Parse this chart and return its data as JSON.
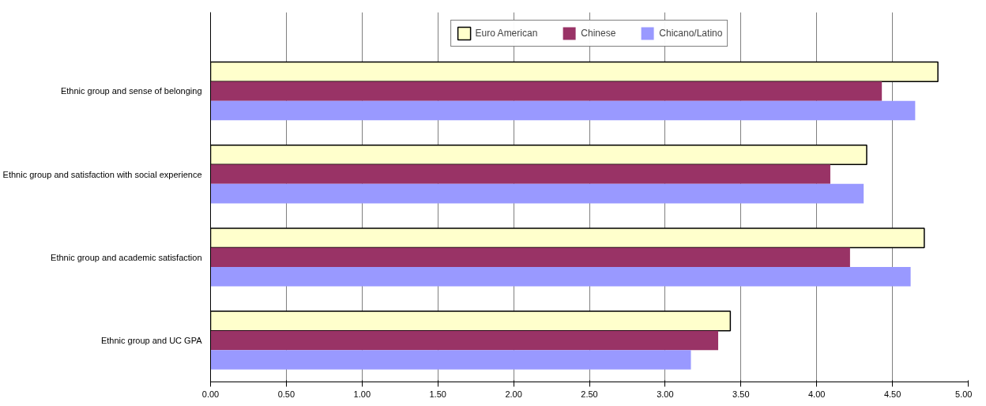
{
  "chart_data": {
    "type": "bar",
    "orientation": "horizontal",
    "categories": [
      "Ethnic group and sense of belonging",
      "Ethnic group and satisfaction with social experience",
      "Ethnic group and academic satisfaction",
      "Ethnic group and UC GPA"
    ],
    "series": [
      {
        "name": "Euro American",
        "color": "#ffffcc",
        "values": [
          4.8,
          4.33,
          4.71,
          3.43
        ]
      },
      {
        "name": "Chinese",
        "color": "#993366",
        "values": [
          4.43,
          4.09,
          4.22,
          3.35
        ]
      },
      {
        "name": "Chicano/Latino",
        "color": "#9999ff",
        "values": [
          4.65,
          4.31,
          4.62,
          3.17
        ]
      }
    ],
    "xlim": [
      0,
      5
    ],
    "xticks": [
      {
        "value": 0,
        "label": "0.00"
      },
      {
        "value": 0.5,
        "label": "0.50"
      },
      {
        "value": 1,
        "label": "1.00"
      },
      {
        "value": 1.5,
        "label": "1.50"
      },
      {
        "value": 2,
        "label": "2.00"
      },
      {
        "value": 2.5,
        "label": "2.50"
      },
      {
        "value": 3,
        "label": "3.00"
      },
      {
        "value": 3.5,
        "label": "3.50"
      },
      {
        "value": 4,
        "label": "4.00"
      },
      {
        "value": 4.5,
        "label": "4.50"
      },
      {
        "value": 5,
        "label": "5.00"
      }
    ],
    "grid": "x",
    "legend": "top"
  }
}
